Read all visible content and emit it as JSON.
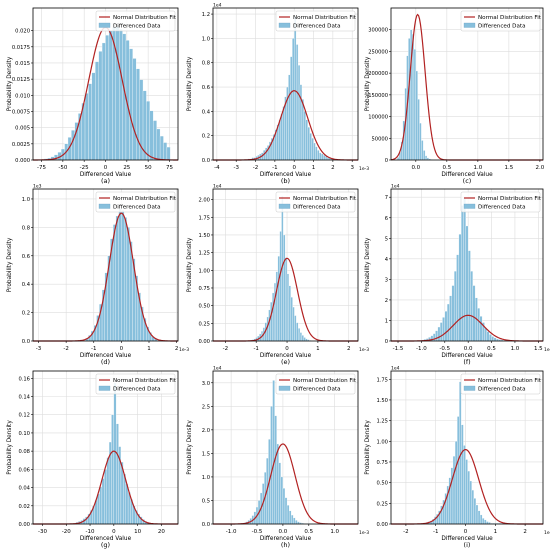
{
  "figure": {
    "panels_label": "3x3 grid of histograms with normal distribution fits"
  },
  "chart_data": [
    {
      "type": "bar",
      "caption": "(a)",
      "xlabel": "Differenced Value",
      "ylabel": "Probability Density",
      "offset_text": "",
      "xlim": [
        -85,
        85
      ],
      "ylim": [
        0,
        0.0235
      ],
      "xticks": [
        -75,
        -50,
        -25,
        0,
        25,
        50,
        75
      ],
      "xtick_labels": [
        "-75",
        "-50",
        "-25",
        "0",
        "25",
        "50",
        "75"
      ],
      "yticks": [
        0,
        0.0025,
        0.005,
        0.0075,
        0.01,
        0.0125,
        0.015,
        0.0175,
        0.02
      ],
      "ytick_labels": [
        "0.000",
        "0.0025",
        "0.005",
        "0.0075",
        "0.010",
        "0.0125",
        "0.015",
        "0.0175",
        "0.020"
      ],
      "fit": {
        "mu": 0,
        "sigma": 19.5,
        "peak": 0.0205
      },
      "hist": {
        "start": -72,
        "bin": 4,
        "values": [
          0.0002,
          0.0003,
          0.0005,
          0.0008,
          0.0012,
          0.0017,
          0.0025,
          0.0035,
          0.0046,
          0.0058,
          0.0072,
          0.0088,
          0.0103,
          0.0118,
          0.0135,
          0.0152,
          0.0168,
          0.0181,
          0.0193,
          0.02,
          0.0205,
          0.0206,
          0.0202,
          0.0195,
          0.0185,
          0.0172,
          0.0157,
          0.0141,
          0.0124,
          0.0107,
          0.0091,
          0.0076,
          0.0061,
          0.0048,
          0.0037,
          0.0027,
          0.002
        ]
      },
      "legend": [
        "Normal Distribution Fit",
        "Differenced Data"
      ]
    },
    {
      "type": "bar",
      "caption": "(b)",
      "xlabel": "Differenced Value",
      "ylabel": "Probability Density",
      "offset_text": "1e4",
      "x_offset_text": "1e-3",
      "xlim": [
        -4.2,
        3.3
      ],
      "ylim": [
        0,
        1.25
      ],
      "xticks": [
        -4,
        -3,
        -2,
        -1,
        0,
        1,
        2,
        3
      ],
      "xtick_labels": [
        "-4",
        "-3",
        "-2",
        "-1",
        "0",
        "1",
        "2",
        "3"
      ],
      "yticks": [
        0,
        0.2,
        0.4,
        0.6,
        0.8,
        1.0,
        1.2
      ],
      "ytick_labels": [
        "0.0",
        "0.2",
        "0.4",
        "0.6",
        "0.8",
        "1.0",
        "1.2"
      ],
      "fit": {
        "mu": 0,
        "sigma": 0.7,
        "peak": 0.57
      },
      "hist": {
        "start": -2.4,
        "bin": 0.1,
        "values": [
          0.01,
          0.01,
          0.02,
          0.02,
          0.03,
          0.04,
          0.05,
          0.06,
          0.08,
          0.1,
          0.12,
          0.15,
          0.18,
          0.21,
          0.25,
          0.29,
          0.33,
          0.38,
          0.44,
          0.52,
          0.6,
          0.7,
          0.85,
          1.0,
          1.18,
          0.95,
          0.78,
          0.62,
          0.5,
          0.4,
          0.33,
          0.27,
          0.22,
          0.18,
          0.14,
          0.11,
          0.08,
          0.06,
          0.05,
          0.04,
          0.03,
          0.02,
          0.02,
          0.01,
          0.01
        ]
      },
      "legend": [
        "Normal Distribution Fit",
        "Differenced Data"
      ]
    },
    {
      "type": "bar",
      "caption": "(c)",
      "xlabel": "Differenced Value",
      "ylabel": "Probability Density",
      "offset_text": "",
      "xlim": [
        -0.4,
        2.05
      ],
      "ylim": [
        0,
        350000
      ],
      "xticks": [
        0,
        0.5,
        1.0,
        1.5,
        2.0
      ],
      "xtick_labels": [
        "0.0",
        "0.5",
        "1.0",
        "1.5",
        "2.0"
      ],
      "yticks": [
        0,
        50000,
        100000,
        150000,
        200000,
        250000,
        300000
      ],
      "ytick_labels": [
        "0",
        "50000",
        "100000",
        "150000",
        "200000",
        "250000",
        "300000"
      ],
      "fit": {
        "mu": 0.03,
        "sigma": 0.12,
        "peak": 335000
      },
      "hist": {
        "start": -0.3,
        "bin": 0.03,
        "values": [
          6000,
          18000,
          42000,
          90000,
          165000,
          240000,
          280000,
          300000,
          290000,
          255000,
          205000,
          140000,
          85000,
          45000,
          22000,
          10000,
          5000,
          2500,
          1200,
          600
        ]
      },
      "legend": [
        "Normal Distribution Fit",
        "Differenced Data"
      ]
    },
    {
      "type": "bar",
      "caption": "(d)",
      "xlabel": "Differenced Value",
      "ylabel": "Probability Density",
      "offset_text": "1e3",
      "x_offset_text": "1e-3",
      "xlim": [
        -3.2,
        2.05
      ],
      "ylim": [
        0,
        1.07
      ],
      "xticks": [
        -3,
        -2,
        -1,
        0,
        1,
        2
      ],
      "xtick_labels": [
        "-3",
        "-2",
        "-1",
        "0",
        "1",
        "2"
      ],
      "yticks": [
        0,
        0.2,
        0.4,
        0.6,
        0.8,
        1.0
      ],
      "ytick_labels": [
        "0.0",
        "0.2",
        "0.4",
        "0.6",
        "0.8",
        "1.0"
      ],
      "fit": {
        "mu": 0,
        "sigma": 0.44,
        "peak": 0.9
      },
      "hist": {
        "start": -1.3,
        "bin": 0.1,
        "values": [
          0.02,
          0.04,
          0.07,
          0.11,
          0.18,
          0.26,
          0.36,
          0.48,
          0.6,
          0.72,
          0.82,
          0.88,
          0.93,
          0.92,
          0.87,
          0.8,
          0.7,
          0.58,
          0.46,
          0.34,
          0.24,
          0.16,
          0.1,
          0.06,
          0.03,
          0.02
        ]
      },
      "legend": [
        "Normal Distribution Fit",
        "Differenced Data"
      ]
    },
    {
      "type": "bar",
      "caption": "(e)",
      "xlabel": "Differenced Value",
      "ylabel": "Probability Density",
      "offset_text": "1e4",
      "x_offset_text": "1e-3",
      "xlim": [
        -2.4,
        2.3
      ],
      "ylim": [
        0,
        2.15
      ],
      "xticks": [
        -2,
        -1,
        0,
        1,
        2
      ],
      "xtick_labels": [
        "-2",
        "-1",
        "0",
        "1",
        "2"
      ],
      "yticks": [
        0,
        0.25,
        0.5,
        0.75,
        1.0,
        1.25,
        1.5,
        1.75,
        2.0
      ],
      "ytick_labels": [
        "0.00",
        "0.25",
        "0.50",
        "0.75",
        "1.00",
        "1.25",
        "1.50",
        "1.75",
        "2.00"
      ],
      "fit": {
        "mu": 0,
        "sigma": 0.34,
        "peak": 1.17
      },
      "hist": {
        "start": -1.2,
        "bin": 0.06,
        "values": [
          0.01,
          0.02,
          0.03,
          0.05,
          0.07,
          0.1,
          0.14,
          0.19,
          0.26,
          0.34,
          0.44,
          0.55,
          0.68,
          0.82,
          0.98,
          1.2,
          1.55,
          2.05,
          1.5,
          1.18,
          0.95,
          0.78,
          0.62,
          0.48,
          0.36,
          0.26,
          0.18,
          0.12,
          0.08,
          0.05,
          0.03,
          0.02,
          0.01
        ]
      },
      "legend": [
        "Normal Distribution Fit",
        "Differenced Data"
      ]
    },
    {
      "type": "bar",
      "caption": "(f)",
      "xlabel": "Differenced Value",
      "ylabel": "Probability Density",
      "offset_text": "1e4",
      "x_offset_text": "1e-3",
      "xlim": [
        -1.65,
        1.6
      ],
      "ylim": [
        0,
        7.4
      ],
      "xticks": [
        -1.5,
        -1.0,
        -0.5,
        0,
        0.5,
        1.0,
        1.5
      ],
      "xtick_labels": [
        "-1.5",
        "-1.0",
        "-0.5",
        "0.0",
        "0.5",
        "1.0",
        "1.5"
      ],
      "yticks": [
        0,
        1,
        2,
        3,
        4,
        5,
        6,
        7
      ],
      "ytick_labels": [
        "0",
        "1",
        "2",
        "3",
        "4",
        "5",
        "6",
        "7"
      ],
      "fit": {
        "mu": 0,
        "sigma": 0.32,
        "peak": 1.25
      },
      "hist": {
        "start": -1.0,
        "bin": 0.05,
        "values": [
          0.05,
          0.08,
          0.12,
          0.18,
          0.26,
          0.36,
          0.5,
          0.68,
          0.9,
          1.15,
          1.45,
          1.8,
          2.2,
          2.7,
          3.4,
          4.2,
          5.2,
          6.6,
          7.0,
          5.6,
          4.4,
          3.4,
          2.7,
          2.1,
          1.6,
          1.2,
          0.9,
          0.65,
          0.46,
          0.32,
          0.22,
          0.15,
          0.1,
          0.07,
          0.05,
          0.03,
          0.02,
          0.01,
          0.01,
          0.01
        ]
      },
      "legend": [
        "Normal Distribution Fit",
        "Differenced Data"
      ]
    },
    {
      "type": "bar",
      "caption": "(g)",
      "xlabel": "Differenced Value",
      "ylabel": "Probability Density",
      "offset_text": "",
      "xlim": [
        -34,
        27
      ],
      "ylim": [
        0,
        0.168
      ],
      "xticks": [
        -30,
        -20,
        -10,
        0,
        10,
        20
      ],
      "xtick_labels": [
        "-30",
        "-20",
        "-10",
        "0",
        "10",
        "20"
      ],
      "yticks": [
        0,
        0.02,
        0.04,
        0.06,
        0.08,
        0.1,
        0.12,
        0.14,
        0.16
      ],
      "ytick_labels": [
        "0.00",
        "0.02",
        "0.04",
        "0.06",
        "0.08",
        "0.10",
        "0.12",
        "0.14",
        "0.16"
      ],
      "fit": {
        "mu": 0,
        "sigma": 5.0,
        "peak": 0.08
      },
      "hist": {
        "start": -16,
        "bin": 1,
        "values": [
          0.002,
          0.003,
          0.004,
          0.006,
          0.008,
          0.011,
          0.015,
          0.02,
          0.026,
          0.033,
          0.041,
          0.05,
          0.06,
          0.073,
          0.09,
          0.12,
          0.155,
          0.11,
          0.085,
          0.068,
          0.055,
          0.044,
          0.035,
          0.027,
          0.02,
          0.015,
          0.011,
          0.008,
          0.005,
          0.003,
          0.002,
          0.001
        ]
      },
      "legend": [
        "Normal Distribution Fit",
        "Differenced Data"
      ]
    },
    {
      "type": "bar",
      "caption": "(h)",
      "xlabel": "Differenced Value",
      "ylabel": "Probability Density",
      "offset_text": "1e4",
      "x_offset_text": "1e-3",
      "xlim": [
        -1.35,
        1.45
      ],
      "ylim": [
        0,
        3.25
      ],
      "xticks": [
        -1.0,
        -0.5,
        0,
        0.5,
        1.0
      ],
      "xtick_labels": [
        "-1.0",
        "-0.5",
        "0.0",
        "0.5",
        "1.0"
      ],
      "yticks": [
        0,
        0.5,
        1.0,
        1.5,
        2.0,
        2.5,
        3.0
      ],
      "ytick_labels": [
        "0.0",
        "0.5",
        "1.0",
        "1.5",
        "2.0",
        "2.5",
        "3.0"
      ],
      "fit": {
        "mu": 0,
        "sigma": 0.235,
        "peak": 1.7
      },
      "hist": {
        "start": -0.8,
        "bin": 0.04,
        "values": [
          0.02,
          0.03,
          0.05,
          0.08,
          0.12,
          0.18,
          0.26,
          0.36,
          0.5,
          0.66,
          0.86,
          1.1,
          1.4,
          1.8,
          2.5,
          3.05,
          2.3,
          1.7,
          1.3,
          1.0,
          0.76,
          0.56,
          0.4,
          0.28,
          0.19,
          0.13,
          0.08,
          0.05,
          0.03,
          0.02,
          0.01,
          0.01,
          0.01,
          0.01,
          0.01
        ]
      },
      "legend": [
        "Normal Distribution Fit",
        "Differenced Data"
      ]
    },
    {
      "type": "bar",
      "caption": "(i)",
      "xlabel": "Differenced Value",
      "ylabel": "Probability Density",
      "offset_text": "1e4",
      "x_offset_text": "1e-3",
      "xlim": [
        -2.5,
        2.6
      ],
      "ylim": [
        0,
        1.85
      ],
      "xticks": [
        -2,
        -1,
        0,
        1,
        2
      ],
      "xtick_labels": [
        "-2",
        "-1",
        "0",
        "1",
        "2"
      ],
      "yticks": [
        0,
        0.25,
        0.5,
        0.75,
        1.0,
        1.25,
        1.5,
        1.75
      ],
      "ytick_labels": [
        "0.00",
        "0.25",
        "0.50",
        "0.75",
        "1.00",
        "1.25",
        "1.50",
        "1.75"
      ],
      "fit": {
        "mu": 0,
        "sigma": 0.44,
        "peak": 0.9
      },
      "hist": {
        "start": -1.4,
        "bin": 0.07,
        "values": [
          0.01,
          0.02,
          0.03,
          0.04,
          0.06,
          0.09,
          0.12,
          0.16,
          0.22,
          0.29,
          0.37,
          0.46,
          0.56,
          0.68,
          0.82,
          1.0,
          1.3,
          1.72,
          1.2,
          0.95,
          0.78,
          0.64,
          0.52,
          0.41,
          0.31,
          0.23,
          0.16,
          0.11,
          0.07,
          0.05,
          0.03,
          0.02,
          0.01,
          0.01,
          0.01,
          0.01,
          0.01,
          0.01,
          0.01,
          0.01
        ]
      },
      "legend": [
        "Normal Distribution Fit",
        "Differenced Data"
      ]
    }
  ],
  "colors": {
    "fit_line": "#b22222",
    "bar_fill": "#87bfdc",
    "bar_edge": "#ffffff",
    "grid": "#dddddd",
    "axis": "#000000"
  }
}
